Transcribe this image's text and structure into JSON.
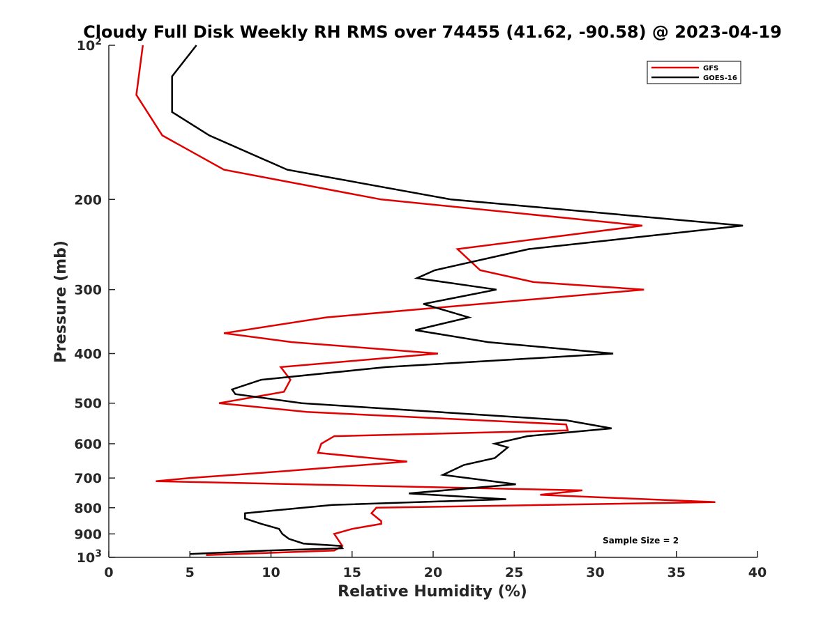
{
  "chart_data": {
    "type": "line",
    "title": "Cloudy Full Disk Weekly RH RMS over 74455 (41.62, -90.58) @ 2023-04-19",
    "xlabel": "Relative Humidity (%)",
    "ylabel": "Pressure (mb)",
    "xlim": [
      0,
      40
    ],
    "ylim": [
      100,
      1000
    ],
    "yscale": "log",
    "yreversed": true,
    "grid": false,
    "legend_position": "top-right",
    "x_ticks": [
      "0",
      "5",
      "10",
      "15",
      "20",
      "25",
      "30",
      "35",
      "40"
    ],
    "x_tick_values": [
      0,
      5,
      10,
      15,
      20,
      25,
      30,
      35,
      40
    ],
    "y_ticks": [
      {
        "value": 100,
        "base": "10",
        "exp": "2"
      },
      {
        "value": 200,
        "label": "200"
      },
      {
        "value": 300,
        "label": "300"
      },
      {
        "value": 400,
        "label": "400"
      },
      {
        "value": 500,
        "label": "500"
      },
      {
        "value": 600,
        "label": "600"
      },
      {
        "value": 700,
        "label": "700"
      },
      {
        "value": 800,
        "label": "800"
      },
      {
        "value": 900,
        "label": "900"
      },
      {
        "value": 1000,
        "base": "10",
        "exp": "3"
      }
    ],
    "series": [
      {
        "name": "GFS",
        "color": "#e00000",
        "points": [
          [
            2.1,
            100
          ],
          [
            1.7,
            125
          ],
          [
            3.3,
            150
          ],
          [
            7.1,
            175
          ],
          [
            16.8,
            200
          ],
          [
            32.9,
            225
          ],
          [
            21.5,
            250
          ],
          [
            22.9,
            275
          ],
          [
            26.2,
            290
          ],
          [
            33.0,
            300
          ],
          [
            13.4,
            340
          ],
          [
            7.1,
            365
          ],
          [
            11.3,
            380
          ],
          [
            20.3,
            400
          ],
          [
            10.6,
            425
          ],
          [
            11.2,
            450
          ],
          [
            10.8,
            475
          ],
          [
            6.8,
            500
          ],
          [
            12.2,
            520
          ],
          [
            28.2,
            550
          ],
          [
            28.3,
            565
          ],
          [
            13.9,
            580
          ],
          [
            13.1,
            600
          ],
          [
            12.9,
            625
          ],
          [
            18.4,
            650
          ],
          [
            10.5,
            680
          ],
          [
            5.0,
            700
          ],
          [
            2.9,
            710
          ],
          [
            29.2,
            740
          ],
          [
            26.6,
            755
          ],
          [
            37.4,
            780
          ],
          [
            16.5,
            800
          ],
          [
            16.2,
            820
          ],
          [
            16.8,
            850
          ],
          [
            16.8,
            860
          ],
          [
            15.0,
            880
          ],
          [
            13.9,
            900
          ],
          [
            14.4,
            950
          ],
          [
            13.9,
            970
          ],
          [
            6.0,
            990
          ]
        ]
      },
      {
        "name": "GOES-16",
        "color": "#000000",
        "points": [
          [
            5.4,
            100
          ],
          [
            3.9,
            115
          ],
          [
            3.9,
            135
          ],
          [
            6.2,
            150
          ],
          [
            11.0,
            175
          ],
          [
            21.1,
            200
          ],
          [
            39.1,
            225
          ],
          [
            25.9,
            250
          ],
          [
            20.1,
            275
          ],
          [
            19.0,
            285
          ],
          [
            23.9,
            300
          ],
          [
            19.4,
            320
          ],
          [
            22.2,
            340
          ],
          [
            18.9,
            360
          ],
          [
            23.4,
            380
          ],
          [
            31.1,
            400
          ],
          [
            17.1,
            425
          ],
          [
            9.4,
            450
          ],
          [
            7.6,
            470
          ],
          [
            7.8,
            480
          ],
          [
            11.9,
            500
          ],
          [
            28.2,
            540
          ],
          [
            31.0,
            560
          ],
          [
            25.8,
            580
          ],
          [
            23.8,
            600
          ],
          [
            24.6,
            610
          ],
          [
            23.8,
            640
          ],
          [
            21.9,
            660
          ],
          [
            20.6,
            690
          ],
          [
            25.1,
            720
          ],
          [
            18.5,
            750
          ],
          [
            24.5,
            770
          ],
          [
            13.8,
            790
          ],
          [
            8.4,
            820
          ],
          [
            8.4,
            840
          ],
          [
            9.4,
            860
          ],
          [
            10.5,
            880
          ],
          [
            10.7,
            900
          ],
          [
            11.1,
            920
          ],
          [
            12.0,
            940
          ],
          [
            14.3,
            950
          ],
          [
            14.4,
            960
          ],
          [
            9.8,
            970
          ],
          [
            5.0,
            985
          ]
        ]
      }
    ],
    "annotations": [
      {
        "text": "Sample Size = 2",
        "x": 32.8,
        "y": 925
      }
    ]
  }
}
